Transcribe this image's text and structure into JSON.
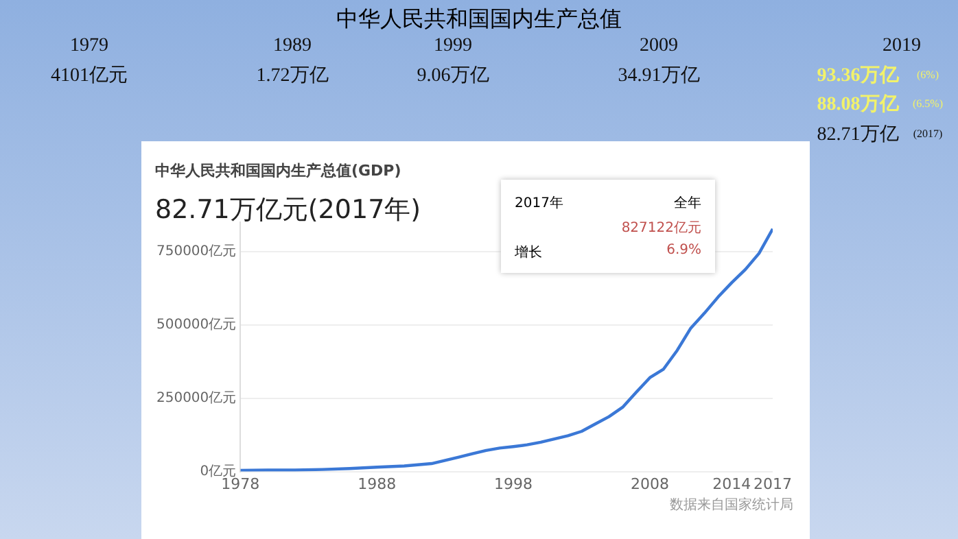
{
  "chart_data": {
    "type": "line",
    "title": "中华人民共和国国内生产总值",
    "subtitle": "中华人民共和国国内生产总值(GDP)",
    "annotations": [
      "1979",
      "4101亿元",
      "1989",
      "1.72万亿",
      "1999",
      "9.06万亿",
      "2009",
      "34.91万亿",
      "2019",
      "93.36万亿",
      "(6%)",
      "88.08万亿",
      "(6.5%)",
      "82.71万亿",
      "(2017)",
      "82.71万亿元(2017年)",
      "2017年",
      "全年",
      "827122亿元",
      "增长",
      "6.9%",
      "数据来自国家统计局"
    ],
    "x": [
      1978,
      1980,
      1982,
      1984,
      1986,
      1988,
      1990,
      1992,
      1994,
      1995,
      1996,
      1997,
      1998,
      1999,
      2000,
      2001,
      2002,
      2003,
      2004,
      2005,
      2006,
      2007,
      2008,
      2009,
      2010,
      2011,
      2012,
      2013,
      2014,
      2015,
      2016,
      2017
    ],
    "series": [
      {
        "color": "#3b78d6",
        "values": [
          4000,
          5000,
          5000,
          7000,
          10000,
          15000,
          19000,
          27000,
          49000,
          61000,
          72000,
          80000,
          85000,
          91000,
          100000,
          111000,
          122000,
          137000,
          162000,
          187000,
          219000,
          270000,
          320000,
          349000,
          413000,
          489000,
          540000,
          595000,
          644000,
          689000,
          744000,
          827000
        ]
      }
    ],
    "xlim": [
      1978,
      2017
    ],
    "xticks": [
      1978,
      1988,
      1998,
      2008,
      2014,
      2017
    ],
    "ylim": [
      0,
      850000
    ],
    "yticks": [
      {
        "value": 0,
        "label": "0亿元"
      },
      {
        "value": 250000,
        "label": "250000亿元"
      },
      {
        "value": 500000,
        "label": "500000亿元"
      },
      {
        "value": 750000,
        "label": "750000亿元"
      }
    ],
    "grid": "y",
    "legend": false,
    "marker": "none",
    "line_style": "solid"
  }
}
